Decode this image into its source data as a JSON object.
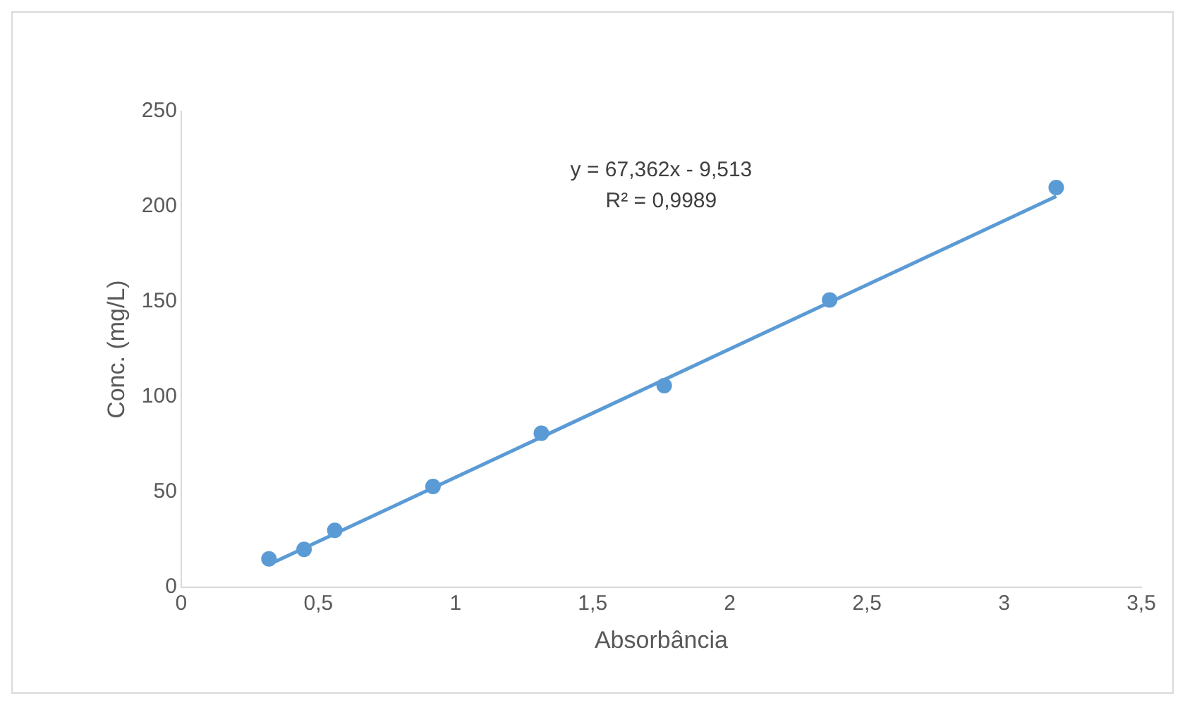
{
  "chart_data": {
    "type": "scatter",
    "xlabel": "Absorbância",
    "ylabel": "Conc. (mg/L)",
    "x": [
      0.32,
      0.448,
      0.56,
      0.918,
      1.313,
      1.761,
      2.364,
      3.19
    ],
    "series": [
      {
        "color": "#5b9bd5",
        "values": [
          15,
          20,
          30,
          53,
          81,
          106,
          151,
          210
        ]
      },
      {
        "type": "line",
        "marker": "none",
        "color": "#5b9bd5",
        "x": [
          0.32,
          3.19
        ],
        "values": [
          12,
          205.4
        ]
      }
    ],
    "marker": "circle",
    "grid": false,
    "legend": false,
    "xlim": [
      0,
      3.5
    ],
    "xticks": [
      0,
      {
        "value": 0.5,
        "label": "0,5"
      },
      1,
      {
        "value": 1.5,
        "label": "1,5"
      },
      2,
      {
        "value": 2.5,
        "label": "2,5"
      },
      3,
      {
        "value": 3.5,
        "label": "3,5"
      }
    ],
    "ylim": [
      0,
      250
    ],
    "yticks": [
      0,
      50,
      100,
      150,
      200,
      250
    ],
    "annotations": [
      "y = 67,362x - 9,513",
      "R² = 0,9989"
    ]
  }
}
